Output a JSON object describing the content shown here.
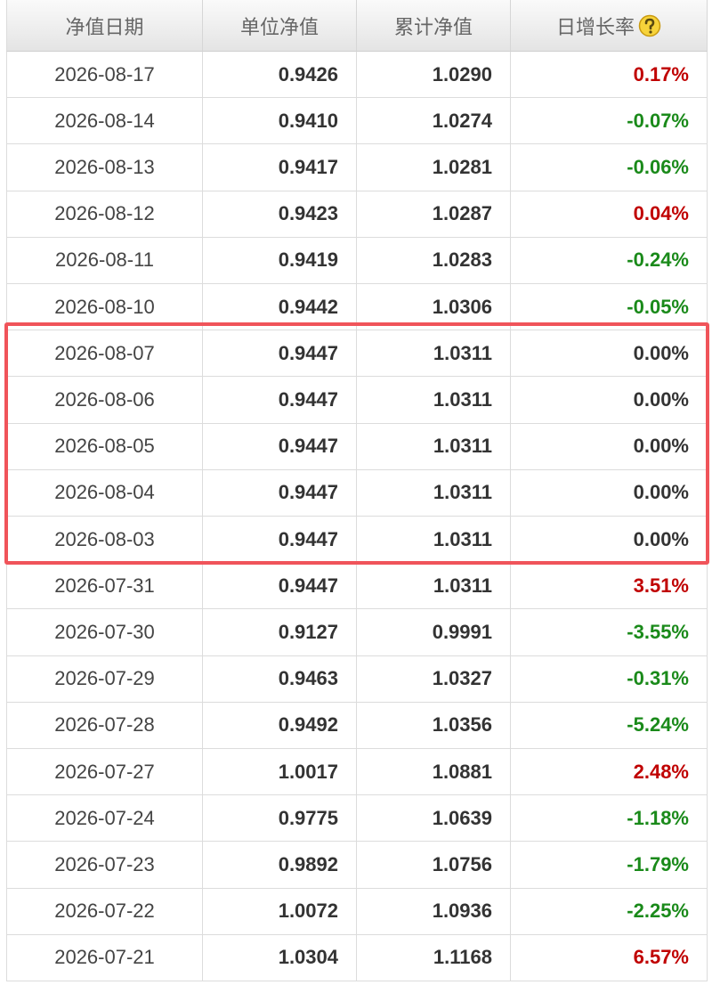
{
  "table": {
    "headers": [
      "净值日期",
      "单位净值",
      "累计净值",
      "日增长率"
    ],
    "rows": [
      [
        "2026-08-17",
        "0.9426",
        "1.0290",
        "0.17%"
      ],
      [
        "2026-08-14",
        "0.9410",
        "1.0274",
        "-0.07%"
      ],
      [
        "2026-08-13",
        "0.9417",
        "1.0281",
        "-0.06%"
      ],
      [
        "2026-08-12",
        "0.9423",
        "1.0287",
        "0.04%"
      ],
      [
        "2026-08-11",
        "0.9419",
        "1.0283",
        "-0.24%"
      ],
      [
        "2026-08-10",
        "0.9442",
        "1.0306",
        "-0.05%"
      ],
      [
        "2026-08-07",
        "0.9447",
        "1.0311",
        "0.00%"
      ],
      [
        "2026-08-06",
        "0.9447",
        "1.0311",
        "0.00%"
      ],
      [
        "2026-08-05",
        "0.9447",
        "1.0311",
        "0.00%"
      ],
      [
        "2026-08-04",
        "0.9447",
        "1.0311",
        "0.00%"
      ],
      [
        "2026-08-03",
        "0.9447",
        "1.0311",
        "0.00%"
      ],
      [
        "2026-07-31",
        "0.9447",
        "1.0311",
        "3.51%"
      ],
      [
        "2026-07-30",
        "0.9127",
        "0.9991",
        "-3.55%"
      ],
      [
        "2026-07-29",
        "0.9463",
        "1.0327",
        "-0.31%"
      ],
      [
        "2026-07-28",
        "0.9492",
        "1.0356",
        "-5.24%"
      ],
      [
        "2026-07-27",
        "1.0017",
        "1.0881",
        "2.48%"
      ],
      [
        "2026-07-24",
        "0.9775",
        "1.0639",
        "-1.18%"
      ],
      [
        "2026-07-23",
        "0.9892",
        "1.0756",
        "-1.79%"
      ],
      [
        "2026-07-22",
        "1.0072",
        "1.0936",
        "-2.25%"
      ],
      [
        "2026-07-21",
        "1.0304",
        "1.1168",
        "6.57%"
      ]
    ],
    "change_colors": [
      "#c00000",
      "#1a8a1a",
      "#1a8a1a",
      "#c00000",
      "#1a8a1a",
      "#1a8a1a",
      "#333333",
      "#333333",
      "#333333",
      "#333333",
      "#333333",
      "#c00000",
      "#1a8a1a",
      "#1a8a1a",
      "#1a8a1a",
      "#c00000",
      "#1a8a1a",
      "#1a8a1a",
      "#1a8a1a",
      "#c00000"
    ]
  }
}
